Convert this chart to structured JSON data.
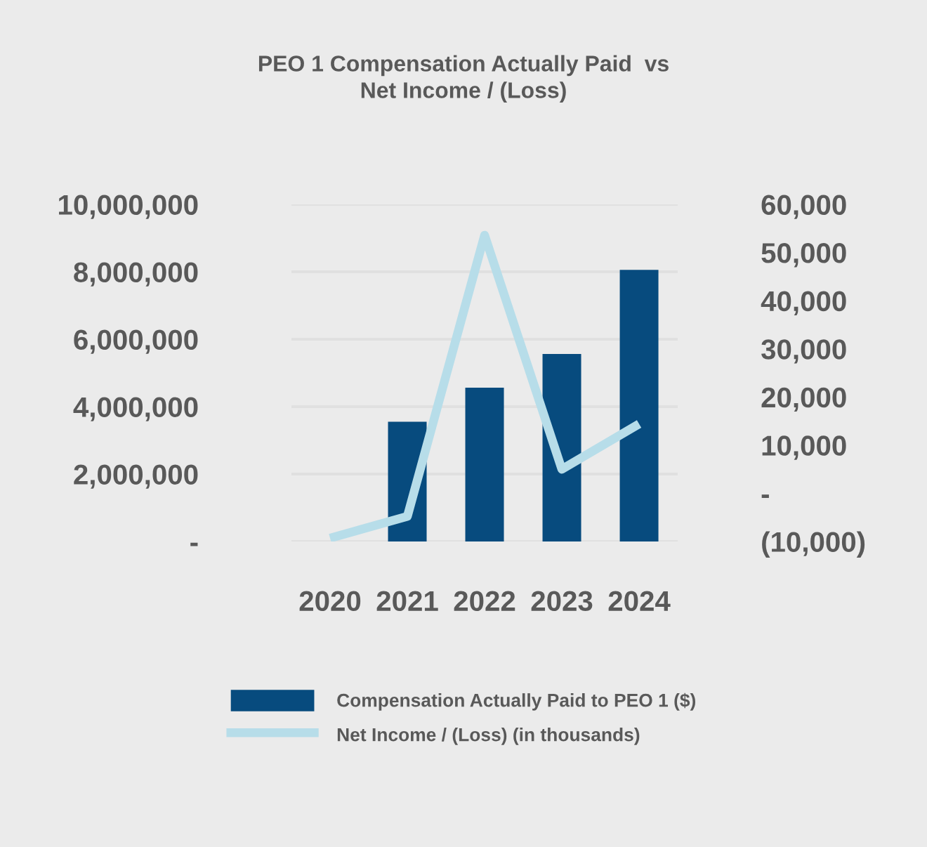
{
  "chart_data": {
    "type": "bar",
    "title": "PEO 1 Compensation Actually Paid  vs\nNet Income / (Loss)",
    "categories": [
      "2020",
      "2021",
      "2022",
      "2023",
      "2024"
    ],
    "series": [
      {
        "name": "Compensation Actually Paid to PEO 1 ($)",
        "color": "#074b7e",
        "values": [
          null,
          3550000,
          4560000,
          5560000,
          8060000
        ]
      },
      {
        "name": "Net Income / (Loss) (in thousands)",
        "type": "line",
        "axis": "y2",
        "color": "#b7dde9",
        "values": [
          -9300,
          -4800,
          53600,
          5000,
          14400
        ]
      }
    ],
    "ylim": [
      0,
      10000000
    ],
    "yticks": [
      {
        "value": 0,
        "label": "-"
      },
      {
        "value": 2000000,
        "label": "2,000,000"
      },
      {
        "value": 4000000,
        "label": "4,000,000"
      },
      {
        "value": 6000000,
        "label": "6,000,000"
      },
      {
        "value": 8000000,
        "label": "8,000,000"
      },
      {
        "value": 10000000,
        "label": "10,000,000"
      }
    ],
    "y2lim": [
      -10000,
      60000
    ],
    "y2ticks": [
      {
        "value": -10000,
        "label": "(10,000)"
      },
      {
        "value": 0,
        "label": "-"
      },
      {
        "value": 10000,
        "label": "10,000"
      },
      {
        "value": 20000,
        "label": "20,000"
      },
      {
        "value": 30000,
        "label": "30,000"
      },
      {
        "value": 40000,
        "label": "40,000"
      },
      {
        "value": 50000,
        "label": "50,000"
      },
      {
        "value": 60000,
        "label": "60,000"
      }
    ],
    "grid": "y",
    "legend": "bottom",
    "marker": "none",
    "line_style": "solid"
  }
}
